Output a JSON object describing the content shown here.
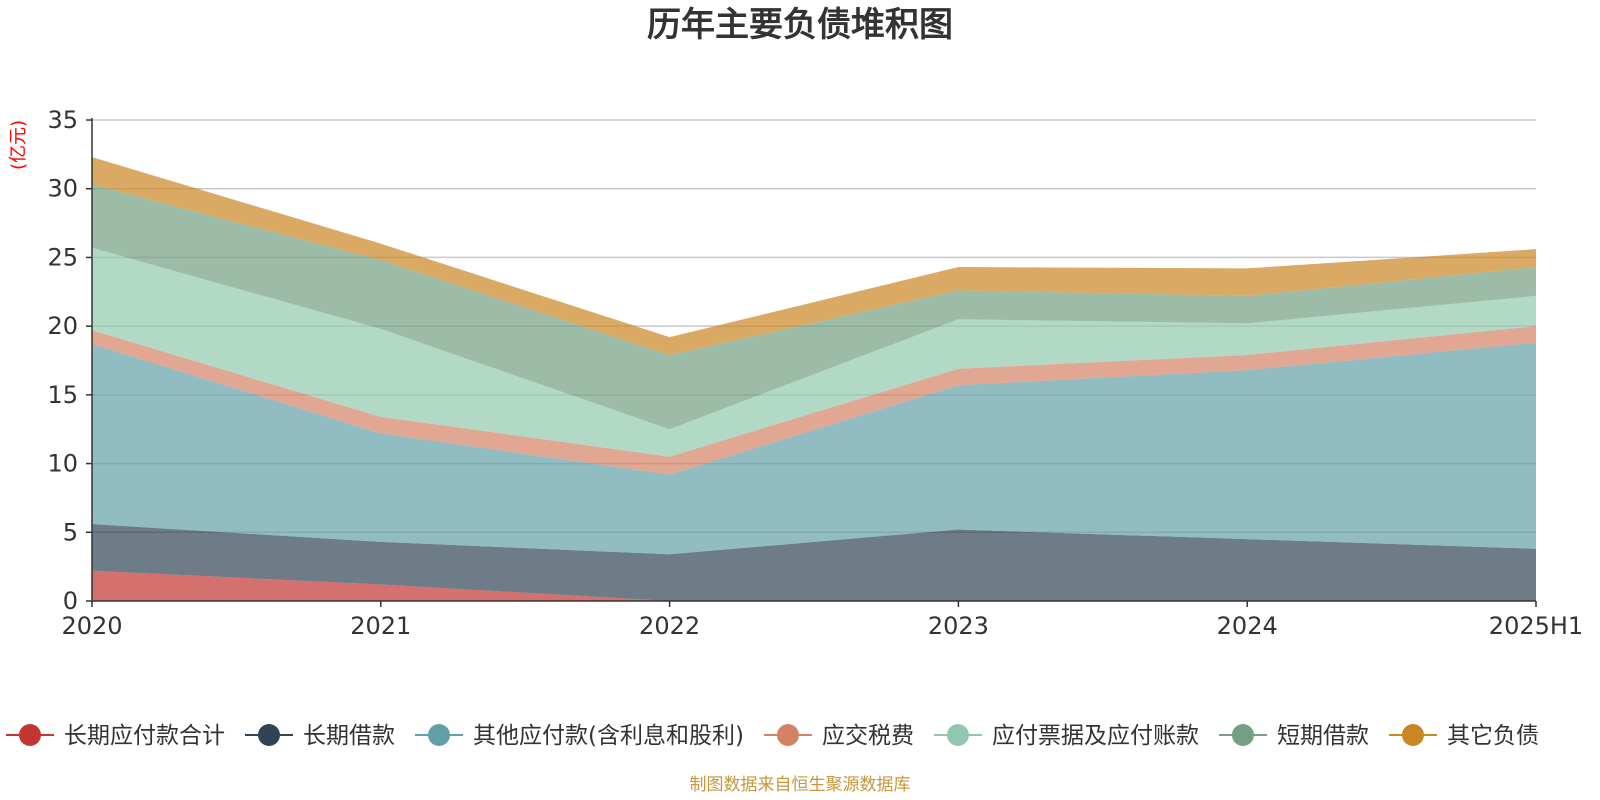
{
  "chart_data": {
    "type": "area",
    "stacked": true,
    "title": "历年主要负债堆积图",
    "ylabel": "(亿元)",
    "xlabel": "",
    "categories": [
      "2020",
      "2021",
      "2022",
      "2023",
      "2024",
      "2025H1"
    ],
    "ylim": [
      0,
      35
    ],
    "yticks": [
      0,
      5,
      10,
      15,
      20,
      25,
      30,
      35
    ],
    "grid": true,
    "legend_position": "bottom",
    "series": [
      {
        "name": "长期应付款合计",
        "color": "#c23531",
        "values": [
          2.2,
          1.2,
          0.0,
          0.0,
          0.0,
          0.0
        ]
      },
      {
        "name": "长期借款",
        "color": "#2f4554",
        "values": [
          3.4,
          3.1,
          3.4,
          5.2,
          4.5,
          3.8
        ]
      },
      {
        "name": "其他应付款(含利息和股利)",
        "color": "#61a0a8",
        "values": [
          13.1,
          7.9,
          5.8,
          10.5,
          12.3,
          15.0
        ]
      },
      {
        "name": "应交税费",
        "color": "#d48265",
        "values": [
          1.0,
          1.2,
          1.3,
          1.2,
          1.1,
          1.2
        ]
      },
      {
        "name": "应付票据及应付账款",
        "color": "#91c7ae",
        "values": [
          6.0,
          6.4,
          2.0,
          3.6,
          2.3,
          2.2
        ]
      },
      {
        "name": "短期借款",
        "color": "#749f83",
        "values": [
          4.6,
          5.0,
          5.4,
          2.1,
          2.0,
          2.1
        ]
      },
      {
        "name": "其它负债",
        "color": "#ca8622",
        "values": [
          2.0,
          1.2,
          1.3,
          1.7,
          2.0,
          1.3
        ]
      }
    ]
  },
  "footer": {
    "source": "制图数据来自恒生聚源数据库"
  }
}
